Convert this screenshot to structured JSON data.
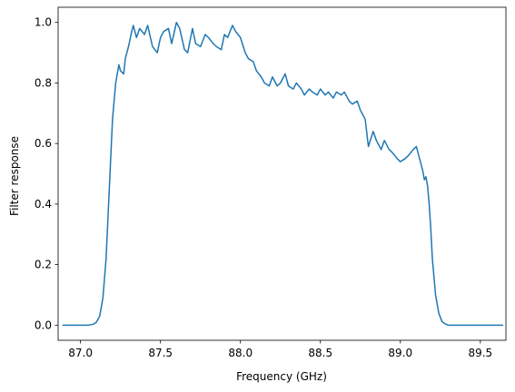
{
  "chart_data": {
    "type": "line",
    "title": "",
    "xlabel": "Frequency (GHz)",
    "ylabel": "Filter response",
    "xlim": [
      86.86,
      89.66
    ],
    "ylim": [
      -0.05,
      1.05
    ],
    "xticks": [
      87.0,
      87.5,
      88.0,
      88.5,
      89.0,
      89.5
    ],
    "xtick_labels": [
      "87.0",
      "87.5",
      "88.0",
      "88.5",
      "89.0",
      "89.5"
    ],
    "yticks": [
      0.0,
      0.2,
      0.4,
      0.6,
      0.8,
      1.0
    ],
    "ytick_labels": [
      "0.0",
      "0.2",
      "0.4",
      "0.6",
      "0.8",
      "1.0"
    ],
    "grid": false,
    "series": [
      {
        "color": "#1f77b4",
        "x": [
          86.89,
          86.95,
          87.0,
          87.05,
          87.08,
          87.1,
          87.12,
          87.14,
          87.16,
          87.18,
          87.2,
          87.22,
          87.24,
          87.25,
          87.27,
          87.28,
          87.3,
          87.32,
          87.33,
          87.35,
          87.37,
          87.4,
          87.42,
          87.45,
          87.48,
          87.5,
          87.52,
          87.55,
          87.57,
          87.6,
          87.62,
          87.65,
          87.67,
          87.7,
          87.72,
          87.75,
          87.78,
          87.8,
          87.83,
          87.85,
          87.88,
          87.9,
          87.92,
          87.95,
          87.97,
          88.0,
          88.03,
          88.05,
          88.08,
          88.1,
          88.13,
          88.15,
          88.18,
          88.2,
          88.23,
          88.25,
          88.28,
          88.3,
          88.33,
          88.35,
          88.38,
          88.4,
          88.43,
          88.45,
          88.48,
          88.5,
          88.53,
          88.55,
          88.58,
          88.6,
          88.63,
          88.65,
          88.68,
          88.7,
          88.73,
          88.75,
          88.78,
          88.8,
          88.83,
          88.85,
          88.88,
          88.9,
          88.93,
          88.95,
          88.98,
          89.0,
          89.03,
          89.05,
          89.08,
          89.1,
          89.12,
          89.14,
          89.15,
          89.16,
          89.17,
          89.18,
          89.19,
          89.2,
          89.22,
          89.24,
          89.26,
          89.28,
          89.3,
          89.35,
          89.4,
          89.5,
          89.64
        ],
        "y": [
          0.0,
          0.0,
          0.0,
          0.0,
          0.003,
          0.01,
          0.03,
          0.09,
          0.22,
          0.45,
          0.68,
          0.8,
          0.86,
          0.84,
          0.83,
          0.88,
          0.92,
          0.97,
          0.99,
          0.95,
          0.98,
          0.96,
          0.99,
          0.92,
          0.9,
          0.95,
          0.97,
          0.98,
          0.93,
          1.0,
          0.98,
          0.91,
          0.9,
          0.98,
          0.93,
          0.92,
          0.96,
          0.95,
          0.93,
          0.92,
          0.91,
          0.96,
          0.95,
          0.99,
          0.97,
          0.95,
          0.9,
          0.88,
          0.87,
          0.84,
          0.82,
          0.8,
          0.79,
          0.82,
          0.79,
          0.8,
          0.83,
          0.79,
          0.78,
          0.8,
          0.78,
          0.76,
          0.78,
          0.77,
          0.76,
          0.78,
          0.76,
          0.77,
          0.75,
          0.77,
          0.76,
          0.77,
          0.74,
          0.73,
          0.74,
          0.71,
          0.68,
          0.59,
          0.64,
          0.61,
          0.58,
          0.61,
          0.58,
          0.57,
          0.55,
          0.54,
          0.55,
          0.56,
          0.58,
          0.59,
          0.55,
          0.51,
          0.48,
          0.49,
          0.46,
          0.4,
          0.32,
          0.22,
          0.1,
          0.04,
          0.012,
          0.004,
          0.0,
          0.0,
          0.0,
          0.0,
          0.0
        ]
      }
    ]
  }
}
